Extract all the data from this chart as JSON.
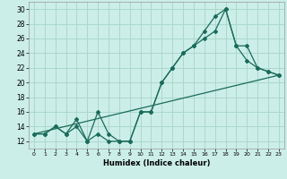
{
  "xlabel": "Humidex (Indice chaleur)",
  "bg_color": "#cceee8",
  "line_color": "#1a6b5a",
  "grid_color": "#aad8cc",
  "xlim": [
    -0.5,
    23.5
  ],
  "ylim": [
    11,
    31
  ],
  "xticks": [
    0,
    1,
    2,
    3,
    4,
    5,
    6,
    7,
    8,
    9,
    10,
    11,
    12,
    13,
    14,
    15,
    16,
    17,
    18,
    19,
    20,
    21,
    22,
    23
  ],
  "yticks": [
    12,
    14,
    16,
    18,
    20,
    22,
    24,
    26,
    28,
    30
  ],
  "line1_x": [
    0,
    1,
    2,
    3,
    4,
    5,
    6,
    7,
    8,
    9,
    10,
    11,
    12,
    13,
    14,
    15,
    16,
    17,
    18,
    19,
    20,
    21,
    22,
    23
  ],
  "line1_y": [
    13,
    13,
    14,
    13,
    14,
    12,
    13,
    12,
    12,
    12,
    16,
    16,
    20,
    22,
    24,
    25,
    26,
    27,
    30,
    25,
    23,
    22,
    21.5,
    21
  ],
  "line2_x": [
    0,
    1,
    2,
    3,
    4,
    5,
    6,
    7,
    8,
    9,
    10,
    11,
    12,
    13,
    14,
    15,
    16,
    17,
    18,
    19,
    20,
    21,
    22,
    23
  ],
  "line2_y": [
    13,
    13,
    14,
    13,
    15,
    12,
    16,
    13,
    12,
    12,
    16,
    16,
    20,
    22,
    24,
    25,
    27,
    29,
    30,
    25,
    25,
    22,
    21.5,
    21
  ],
  "line3_x": [
    0,
    23
  ],
  "line3_y": [
    13,
    21
  ]
}
